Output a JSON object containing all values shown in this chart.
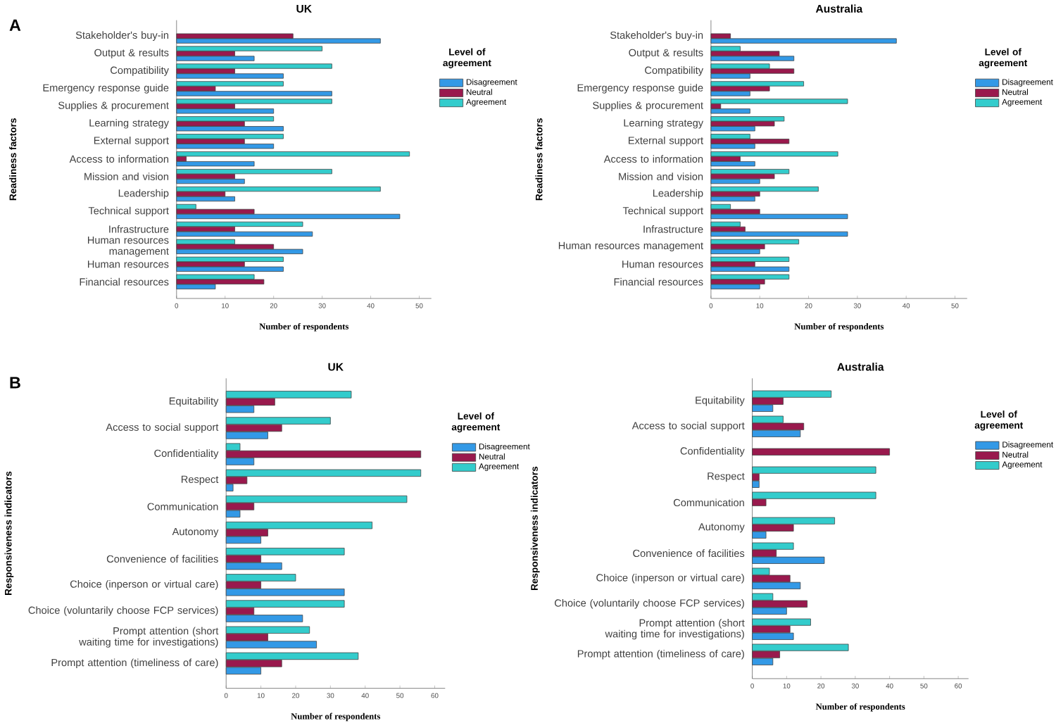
{
  "chart_data": [
    {
      "type": "bar",
      "orientation": "horizontal",
      "title": "UK",
      "xlabel": "Number of respondents",
      "ylabel": "Readiness factors",
      "legend_title": "Level of agreement",
      "legend": "right",
      "annotations": [
        "A"
      ],
      "categories": [
        "Stakeholder's buy-in",
        "Output & results",
        "Compatibility",
        "Emergency response guide",
        "Supplies & procurement",
        "Learning strategy",
        "External support",
        "Access to information",
        "Mission and vision",
        "Leadership",
        "Technical support",
        "Infrastructure",
        "Human resources management",
        "Human resources",
        "Financial resources"
      ],
      "series": [
        {
          "name": "Disagreement",
          "color": "#3399e6",
          "values": [
            42,
            16,
            22,
            32,
            20,
            22,
            20,
            16,
            14,
            12,
            46,
            28,
            26,
            22,
            8
          ]
        },
        {
          "name": "Neutral",
          "color": "#99194d",
          "values": [
            24,
            12,
            12,
            8,
            12,
            14,
            14,
            2,
            12,
            10,
            16,
            12,
            20,
            14,
            18
          ]
        },
        {
          "name": "Agreement",
          "color": "#33cccc",
          "values": [
            null,
            30,
            32,
            22,
            32,
            20,
            22,
            48,
            32,
            42,
            4,
            26,
            12,
            22,
            16
          ]
        }
      ],
      "xlim": [
        0,
        52.5
      ],
      "xticks": [
        0,
        10,
        20,
        30,
        40,
        50
      ]
    },
    {
      "type": "bar",
      "orientation": "horizontal",
      "title": "Australia",
      "xlabel": "Number of respondents",
      "ylabel": "Readiness factors",
      "legend_title": "Level of agreement",
      "legend": "right",
      "categories": [
        "Stakeholder's buy-in",
        "Output & results",
        "Compatibility",
        "Emergency response guide",
        "Supplies & procurement",
        "Learning strategy",
        "External support",
        "Access to information",
        "Mission and vision",
        "Leadership",
        "Technical support",
        "Infrastructure",
        "Human resources management",
        "Human resources",
        "Financial resources"
      ],
      "series": [
        {
          "name": "Disagreement",
          "color": "#3399e6",
          "values": [
            38,
            17,
            8,
            8,
            8,
            9,
            9,
            9,
            10,
            9,
            28,
            28,
            10,
            16,
            10
          ]
        },
        {
          "name": "Neutral",
          "color": "#99194d",
          "values": [
            4,
            14,
            17,
            12,
            2,
            13,
            16,
            6,
            13,
            10,
            10,
            7,
            11,
            9,
            11
          ]
        },
        {
          "name": "Agreement",
          "color": "#33cccc",
          "values": [
            null,
            6,
            12,
            19,
            28,
            15,
            8,
            26,
            16,
            22,
            4,
            6,
            18,
            16,
            16
          ]
        }
      ],
      "xlim": [
        0,
        52.5
      ],
      "xticks": [
        0,
        10,
        20,
        30,
        40,
        50
      ]
    },
    {
      "type": "bar",
      "orientation": "horizontal",
      "title": "UK",
      "xlabel": "Number of respondents",
      "ylabel": "Responsiveness indicators",
      "legend_title": "Level of agreement",
      "legend": "right",
      "annotations": [
        "B"
      ],
      "categories": [
        "Equitability",
        "Access to social support",
        "Confidentiality",
        "Respect",
        "Communication",
        "Autonomy",
        "Convenience of facilities",
        "Choice (inperson or virtual care)",
        "Choice (voluntarily choose FCP services)",
        "Prompt attention (short waiting time for investigations)",
        "Prompt attention (timeliness of care)"
      ],
      "series": [
        {
          "name": "Disagreement",
          "color": "#3399e6",
          "values": [
            8,
            12,
            8,
            2,
            4,
            10,
            16,
            34,
            22,
            26,
            10
          ]
        },
        {
          "name": "Neutral",
          "color": "#99194d",
          "values": [
            14,
            16,
            56,
            6,
            8,
            12,
            10,
            10,
            8,
            12,
            16
          ]
        },
        {
          "name": "Agreement",
          "color": "#33cccc",
          "values": [
            36,
            30,
            4,
            56,
            52,
            42,
            34,
            20,
            34,
            24,
            38
          ]
        }
      ],
      "xlim": [
        0,
        63
      ],
      "xticks": [
        0,
        10,
        20,
        30,
        40,
        50,
        60
      ]
    },
    {
      "type": "bar",
      "orientation": "horizontal",
      "title": "Australia",
      "xlabel": "Number of respondents",
      "ylabel": "Responsiveness indicators",
      "legend_title": "Level of agreement",
      "legend": "right",
      "categories": [
        "Equitability",
        "Access to social support",
        "Confidentiality",
        "Respect",
        "Communication",
        "Autonomy",
        "Convenience of facilities",
        "Choice (inperson or virtual care)",
        "Choice (voluntarily choose FCP services)",
        "Prompt attention (short waiting time for investigations)",
        "Prompt attention (timeliness of care)"
      ],
      "series": [
        {
          "name": "Disagreement",
          "color": "#3399e6",
          "values": [
            6,
            14,
            null,
            2,
            null,
            4,
            21,
            14,
            10,
            12,
            6
          ]
        },
        {
          "name": "Neutral",
          "color": "#99194d",
          "values": [
            9,
            15,
            40,
            2,
            4,
            12,
            7,
            11,
            16,
            11,
            8
          ]
        },
        {
          "name": "Agreement",
          "color": "#33cccc",
          "values": [
            23,
            9,
            null,
            36,
            36,
            24,
            12,
            5,
            6,
            17,
            28
          ]
        }
      ],
      "xlim": [
        0,
        63
      ],
      "xticks": [
        0,
        10,
        20,
        30,
        40,
        50,
        60
      ]
    }
  ]
}
